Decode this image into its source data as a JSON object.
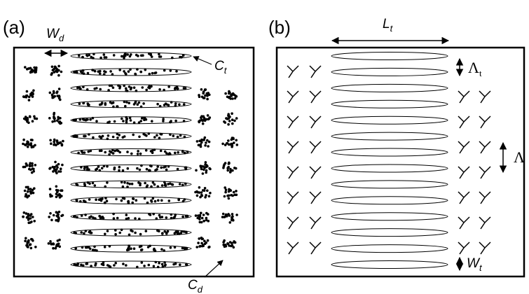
{
  "panels": [
    {
      "label": "(a)",
      "annotations": [
        {
          "text": "W",
          "sub": "d"
        },
        {
          "text": "C",
          "sub": "t"
        },
        {
          "text": "C",
          "sub": "d"
        }
      ]
    },
    {
      "label": "(b)",
      "annotations": [
        {
          "text": "L",
          "sub": "t"
        },
        {
          "text": "Λ",
          "sub": "t"
        },
        {
          "text": "Λ"
        },
        {
          "text": "W",
          "sub": "t"
        }
      ]
    }
  ]
}
